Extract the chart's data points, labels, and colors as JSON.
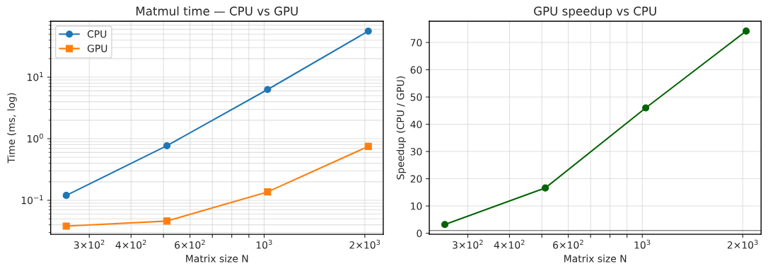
{
  "chart_data": [
    {
      "type": "line",
      "title": "Matmul time — CPU vs GPU",
      "xlabel": "Matrix size N",
      "ylabel": "Time (ms, log)",
      "x": [
        256,
        512,
        1024,
        2048
      ],
      "series": [
        {
          "name": "CPU",
          "color": "#1f77b4",
          "marker": "circle",
          "values": [
            0.12,
            0.77,
            6.3,
            56
          ]
        },
        {
          "name": "GPU",
          "color": "#ff7f0e",
          "marker": "square",
          "values": [
            0.038,
            0.046,
            0.137,
            0.75
          ]
        }
      ],
      "log": "xy",
      "xlim": [
        230,
        2270
      ],
      "ylim": [
        0.028,
        81
      ],
      "xticks": [
        {
          "value": 300,
          "label": "3×10$^{2}$"
        },
        {
          "value": 400,
          "label": "4×10$^{2}$"
        },
        {
          "value": 500,
          "label": null
        },
        {
          "value": 600,
          "label": "6×10$^{2}$"
        },
        {
          "value": 700,
          "label": null
        },
        {
          "value": 800,
          "label": null
        },
        {
          "value": 900,
          "label": null
        },
        {
          "value": 1000,
          "label": "10$^{3}$"
        },
        {
          "value": 2000,
          "label": "2×10$^{3}$"
        }
      ],
      "yticks": [
        {
          "value": 0.1,
          "label": "10$^{−1}$"
        },
        {
          "value": 1,
          "label": "10$^{0}$"
        },
        {
          "value": 10,
          "label": "10$^{1}$"
        }
      ],
      "grid": true,
      "legend": "top left"
    },
    {
      "type": "line",
      "title": "GPU speedup vs CPU",
      "xlabel": "Matrix size N",
      "ylabel": "Speedup (CPU / GPU)",
      "x": [
        256,
        512,
        1024,
        2048
      ],
      "series": [
        {
          "color": "#006400",
          "marker": "circle",
          "values": [
            3.2,
            16.6,
            46,
            74.2
          ]
        }
      ],
      "log": "x",
      "xlim": [
        230,
        2270
      ],
      "ylim": [
        -0.4,
        77.8
      ],
      "xticks": [
        {
          "value": 300,
          "label": "3×10$^{2}$"
        },
        {
          "value": 400,
          "label": "4×10$^{2}$"
        },
        {
          "value": 500,
          "label": null
        },
        {
          "value": 600,
          "label": "6×10$^{2}$"
        },
        {
          "value": 700,
          "label": null
        },
        {
          "value": 800,
          "label": null
        },
        {
          "value": 900,
          "label": null
        },
        {
          "value": 1000,
          "label": "10$^{3}$"
        },
        {
          "value": 2000,
          "label": "2×10$^{3}$"
        }
      ],
      "yticks": [
        0,
        10,
        20,
        30,
        40,
        50,
        60,
        70
      ],
      "ref_lines": [
        {
          "axis": "y",
          "value": 1,
          "color": "#555555"
        }
      ],
      "grid": true
    }
  ]
}
